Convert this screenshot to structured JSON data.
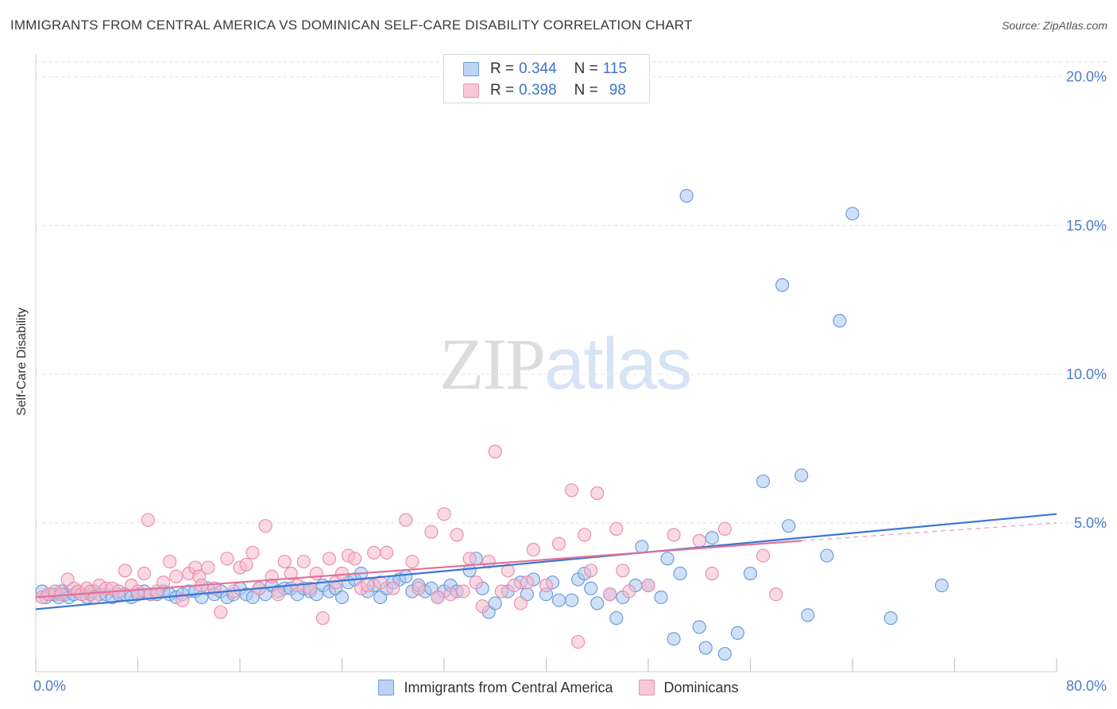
{
  "header": {
    "title": "IMMIGRANTS FROM CENTRAL AMERICA VS DOMINICAN SELF-CARE DISABILITY CORRELATION CHART",
    "source": "Source: ZipAtlas.com"
  },
  "watermark": {
    "zip": "ZIP",
    "atlas": "atlas"
  },
  "legend": {
    "rows": [
      {
        "r_label": "R =",
        "r_value": "0.344",
        "n_label": "N =",
        "n_value": "115"
      },
      {
        "r_label": "R =",
        "r_value": "0.398",
        "n_label": "N =",
        "n_value": "98"
      }
    ]
  },
  "bottom_legend": {
    "items": [
      {
        "label": "Immigrants from Central America"
      },
      {
        "label": "Dominicans"
      }
    ]
  },
  "colors": {
    "blue_fill": "#aac6ee",
    "blue_stroke": "#6e9ddc",
    "blue_line": "#3a76d3",
    "pink_fill": "#f6b9cc",
    "pink_stroke": "#ea90ad",
    "pink_line": "#e3709a",
    "grid": "#e3e3e3",
    "tick_label": "#4a7cc9"
  },
  "chart_data": {
    "type": "scatter",
    "title": "IMMIGRANTS FROM CENTRAL AMERICA VS DOMINICAN SELF-CARE DISABILITY CORRELATION CHART",
    "xlabel": "",
    "ylabel": "Self-Care Disability",
    "xlim": [
      0,
      80
    ],
    "ylim": [
      0,
      20.5
    ],
    "x_tick_labels": [
      {
        "value": 0,
        "label": "0.0%"
      },
      {
        "value": 80,
        "label": "80.0%"
      }
    ],
    "y_tick_labels": [
      {
        "value": 5,
        "label": "5.0%"
      },
      {
        "value": 10,
        "label": "10.0%"
      },
      {
        "value": 15,
        "label": "15.0%"
      },
      {
        "value": 20,
        "label": "20.0%"
      }
    ],
    "grid": "horizontal dashed",
    "legend_position": "top-center",
    "series": [
      {
        "name": "Immigrants from Central America",
        "color": "#aac6ee",
        "R": 0.344,
        "N": 115,
        "trend": {
          "x": [
            0,
            80
          ],
          "y": [
            2.1,
            5.3
          ]
        },
        "points": [
          [
            0.5,
            2.7
          ],
          [
            0.8,
            2.5
          ],
          [
            1.2,
            2.6
          ],
          [
            1.5,
            2.6
          ],
          [
            1.8,
            2.5
          ],
          [
            2.0,
            2.7
          ],
          [
            2.3,
            2.6
          ],
          [
            2.6,
            2.5
          ],
          [
            3.0,
            2.6
          ],
          [
            3.3,
            2.7
          ],
          [
            3.6,
            2.6
          ],
          [
            4.0,
            2.5
          ],
          [
            4.3,
            2.6
          ],
          [
            4.6,
            2.7
          ],
          [
            5.0,
            2.6
          ],
          [
            5.5,
            2.6
          ],
          [
            6.0,
            2.5
          ],
          [
            6.5,
            2.6
          ],
          [
            7.0,
            2.6
          ],
          [
            7.5,
            2.5
          ],
          [
            8.0,
            2.6
          ],
          [
            8.5,
            2.7
          ],
          [
            9.0,
            2.6
          ],
          [
            9.5,
            2.6
          ],
          [
            10.0,
            2.7
          ],
          [
            10.5,
            2.6
          ],
          [
            11.0,
            2.5
          ],
          [
            11.5,
            2.6
          ],
          [
            12.0,
            2.7
          ],
          [
            12.5,
            2.7
          ],
          [
            13.0,
            2.5
          ],
          [
            13.5,
            2.8
          ],
          [
            14.0,
            2.6
          ],
          [
            14.5,
            2.7
          ],
          [
            15.0,
            2.5
          ],
          [
            15.5,
            2.6
          ],
          [
            16.0,
            2.8
          ],
          [
            16.5,
            2.6
          ],
          [
            17.0,
            2.5
          ],
          [
            17.5,
            2.8
          ],
          [
            18.0,
            2.6
          ],
          [
            18.5,
            2.9
          ],
          [
            19.0,
            2.7
          ],
          [
            19.5,
            2.8
          ],
          [
            20.0,
            2.8
          ],
          [
            20.5,
            2.6
          ],
          [
            21.0,
            2.8
          ],
          [
            21.5,
            2.7
          ],
          [
            22.0,
            2.6
          ],
          [
            22.5,
            2.9
          ],
          [
            23.0,
            2.7
          ],
          [
            23.5,
            2.8
          ],
          [
            24.0,
            2.5
          ],
          [
            24.5,
            3.0
          ],
          [
            25.0,
            3.1
          ],
          [
            25.5,
            3.3
          ],
          [
            26.0,
            2.7
          ],
          [
            26.5,
            2.9
          ],
          [
            27.0,
            2.5
          ],
          [
            27.5,
            2.8
          ],
          [
            28.0,
            3.0
          ],
          [
            28.5,
            3.1
          ],
          [
            29.0,
            3.2
          ],
          [
            29.5,
            2.7
          ],
          [
            30.0,
            2.9
          ],
          [
            30.5,
            2.7
          ],
          [
            31.0,
            2.8
          ],
          [
            31.5,
            2.5
          ],
          [
            32.0,
            2.7
          ],
          [
            32.5,
            2.9
          ],
          [
            33.0,
            2.7
          ],
          [
            34.0,
            3.4
          ],
          [
            34.5,
            3.8
          ],
          [
            35.0,
            2.8
          ],
          [
            35.5,
            2.0
          ],
          [
            36.0,
            2.3
          ],
          [
            37.0,
            2.7
          ],
          [
            38.0,
            3.0
          ],
          [
            38.5,
            2.6
          ],
          [
            39.0,
            3.1
          ],
          [
            40.0,
            2.6
          ],
          [
            40.5,
            3.0
          ],
          [
            41.0,
            2.4
          ],
          [
            42.0,
            2.4
          ],
          [
            42.5,
            3.1
          ],
          [
            43.0,
            3.3
          ],
          [
            43.5,
            2.8
          ],
          [
            44.0,
            2.3
          ],
          [
            45.0,
            2.6
          ],
          [
            45.5,
            1.8
          ],
          [
            46.0,
            2.5
          ],
          [
            47.0,
            2.9
          ],
          [
            47.5,
            4.2
          ],
          [
            48.0,
            2.9
          ],
          [
            49.0,
            2.5
          ],
          [
            49.5,
            3.8
          ],
          [
            50.0,
            1.1
          ],
          [
            50.5,
            3.3
          ],
          [
            51.0,
            16.0
          ],
          [
            52.0,
            1.5
          ],
          [
            52.5,
            0.8
          ],
          [
            53.0,
            4.5
          ],
          [
            54.0,
            0.6
          ],
          [
            55.0,
            1.3
          ],
          [
            56.0,
            3.3
          ],
          [
            57.0,
            6.4
          ],
          [
            58.5,
            13.0
          ],
          [
            59.0,
            4.9
          ],
          [
            60.0,
            6.6
          ],
          [
            60.5,
            1.9
          ],
          [
            62.0,
            3.9
          ],
          [
            63.0,
            11.8
          ],
          [
            64.0,
            15.4
          ],
          [
            67.0,
            1.8
          ],
          [
            71.0,
            2.9
          ]
        ]
      },
      {
        "name": "Dominicans",
        "color": "#f6b9cc",
        "R": 0.398,
        "N": 98,
        "trend": {
          "x": [
            0,
            60
          ],
          "y": [
            2.5,
            4.4
          ]
        },
        "trend_extension": {
          "x": [
            60,
            80
          ],
          "y": [
            4.4,
            5.0
          ]
        },
        "points": [
          [
            0.5,
            2.5
          ],
          [
            1.0,
            2.6
          ],
          [
            1.5,
            2.7
          ],
          [
            2.0,
            2.6
          ],
          [
            2.5,
            3.1
          ],
          [
            3.0,
            2.8
          ],
          [
            3.3,
            2.7
          ],
          [
            3.6,
            2.6
          ],
          [
            4.0,
            2.8
          ],
          [
            4.3,
            2.7
          ],
          [
            4.6,
            2.5
          ],
          [
            5.0,
            2.9
          ],
          [
            5.5,
            2.8
          ],
          [
            6.0,
            2.8
          ],
          [
            6.5,
            2.7
          ],
          [
            7.0,
            3.4
          ],
          [
            7.5,
            2.9
          ],
          [
            8.0,
            2.7
          ],
          [
            8.5,
            3.3
          ],
          [
            8.8,
            5.1
          ],
          [
            9.0,
            2.6
          ],
          [
            9.5,
            2.7
          ],
          [
            10.0,
            3.0
          ],
          [
            10.5,
            3.7
          ],
          [
            11.0,
            3.2
          ],
          [
            11.5,
            2.4
          ],
          [
            12.0,
            3.3
          ],
          [
            12.5,
            3.5
          ],
          [
            12.8,
            3.2
          ],
          [
            13.0,
            2.9
          ],
          [
            13.5,
            3.5
          ],
          [
            14.0,
            2.8
          ],
          [
            14.5,
            2.0
          ],
          [
            15.0,
            3.8
          ],
          [
            15.5,
            2.7
          ],
          [
            16.0,
            3.5
          ],
          [
            16.5,
            3.6
          ],
          [
            17.0,
            4.0
          ],
          [
            17.5,
            2.8
          ],
          [
            18.0,
            4.9
          ],
          [
            18.5,
            3.2
          ],
          [
            19.0,
            2.6
          ],
          [
            19.5,
            3.7
          ],
          [
            20.0,
            3.3
          ],
          [
            20.5,
            2.9
          ],
          [
            21.0,
            3.7
          ],
          [
            21.5,
            2.8
          ],
          [
            22.0,
            3.3
          ],
          [
            22.5,
            1.8
          ],
          [
            23.0,
            3.8
          ],
          [
            23.5,
            3.0
          ],
          [
            24.0,
            3.3
          ],
          [
            24.5,
            3.9
          ],
          [
            25.0,
            3.8
          ],
          [
            25.5,
            2.8
          ],
          [
            26.0,
            2.9
          ],
          [
            26.5,
            4.0
          ],
          [
            27.0,
            3.0
          ],
          [
            27.5,
            4.0
          ],
          [
            28.0,
            2.8
          ],
          [
            29.0,
            5.1
          ],
          [
            29.5,
            3.7
          ],
          [
            30.0,
            2.8
          ],
          [
            31.0,
            4.7
          ],
          [
            31.5,
            2.5
          ],
          [
            32.0,
            5.3
          ],
          [
            32.5,
            2.6
          ],
          [
            33.0,
            4.6
          ],
          [
            33.5,
            2.7
          ],
          [
            34.0,
            3.8
          ],
          [
            34.5,
            3.0
          ],
          [
            35.0,
            2.2
          ],
          [
            35.5,
            3.7
          ],
          [
            36.0,
            7.4
          ],
          [
            36.5,
            2.7
          ],
          [
            37.0,
            3.4
          ],
          [
            37.5,
            2.9
          ],
          [
            38.0,
            2.3
          ],
          [
            38.5,
            3.0
          ],
          [
            39.0,
            4.1
          ],
          [
            40.0,
            2.9
          ],
          [
            41.0,
            4.3
          ],
          [
            42.0,
            6.1
          ],
          [
            42.5,
            1.0
          ],
          [
            43.0,
            4.6
          ],
          [
            43.5,
            3.4
          ],
          [
            44.0,
            6.0
          ],
          [
            45.0,
            2.6
          ],
          [
            45.5,
            4.8
          ],
          [
            46.0,
            3.4
          ],
          [
            46.5,
            2.7
          ],
          [
            48.0,
            2.9
          ],
          [
            50.0,
            4.6
          ],
          [
            52.0,
            4.4
          ],
          [
            53.0,
            3.3
          ],
          [
            54.0,
            4.8
          ],
          [
            57.0,
            3.9
          ],
          [
            58.0,
            2.6
          ]
        ]
      }
    ]
  }
}
